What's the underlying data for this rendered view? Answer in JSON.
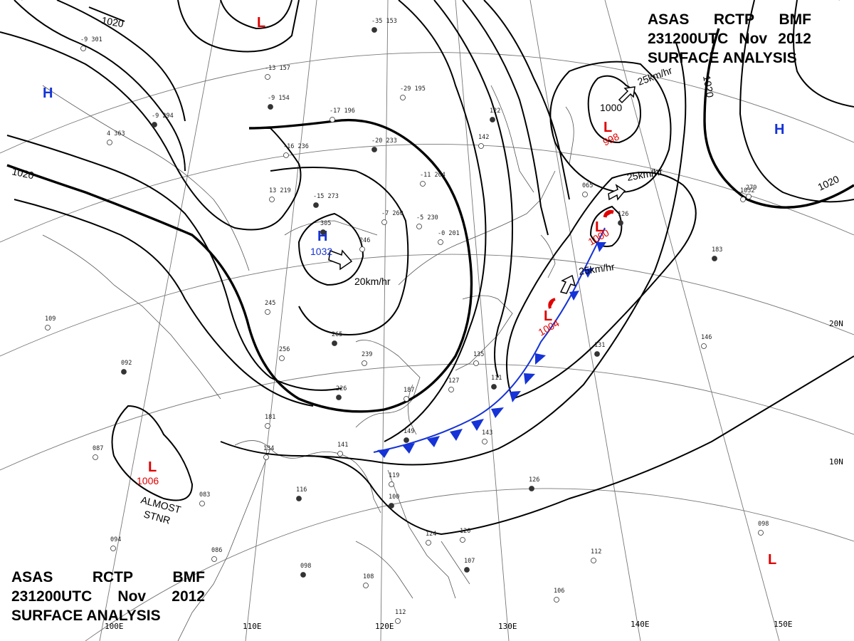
{
  "header": {
    "line1": [
      "ASAS",
      "RCTP",
      "BMF"
    ],
    "line2": [
      "231200UTC",
      "Nov",
      "2012"
    ],
    "line3": "SURFACE ANALYSIS"
  },
  "isobar_labels": [
    "1020",
    "1020",
    "1020",
    "1020",
    "1000"
  ],
  "lat_labels": [
    "20N",
    "10N"
  ],
  "lon_labels": [
    "110E",
    "120E",
    "130E",
    "140E",
    "150E",
    "100E"
  ],
  "pressure_systems": [
    {
      "type": "L",
      "value": ""
    },
    {
      "type": "H",
      "value": ""
    },
    {
      "type": "L",
      "value": "998"
    },
    {
      "type": "H",
      "value": ""
    },
    {
      "type": "H",
      "value": "1032"
    },
    {
      "type": "L",
      "value": "1000"
    },
    {
      "type": "L",
      "value": "1004"
    },
    {
      "type": "L",
      "value": "1006"
    },
    {
      "type": "L",
      "value": ""
    }
  ],
  "movement_labels": [
    "25km/hr",
    "25km/hr",
    "20km/hr",
    "25km/hr"
  ],
  "annotations": [
    "ALMOST",
    "STNR"
  ],
  "station_data": [
    "-35 153",
    "-9 301",
    "-13 157",
    "-9 154",
    "-29 195",
    "-17 196",
    "-9 294",
    "4 363",
    "-16 236",
    "-20 233",
    "-11 204",
    "13 219",
    "-15 273",
    "-7 260",
    "-5 230",
    "305",
    "246",
    "-0 201",
    "122",
    "142",
    "065",
    "126",
    "1032",
    "245",
    "265",
    "256",
    "239",
    "226",
    "187",
    "181",
    "149",
    "141",
    "134",
    "116",
    "083",
    "119",
    "100",
    "124",
    "120",
    "107",
    "108",
    "112",
    "098",
    "086",
    "094",
    "092",
    "109",
    "087",
    "131",
    "135",
    "127",
    "111",
    "143",
    "279",
    "183",
    "146",
    "098",
    "126",
    "106",
    "112"
  ],
  "colors": {
    "low": "#e00000",
    "high": "#1533d6",
    "cold_front": "#1533d6",
    "isobar": "#000000"
  }
}
